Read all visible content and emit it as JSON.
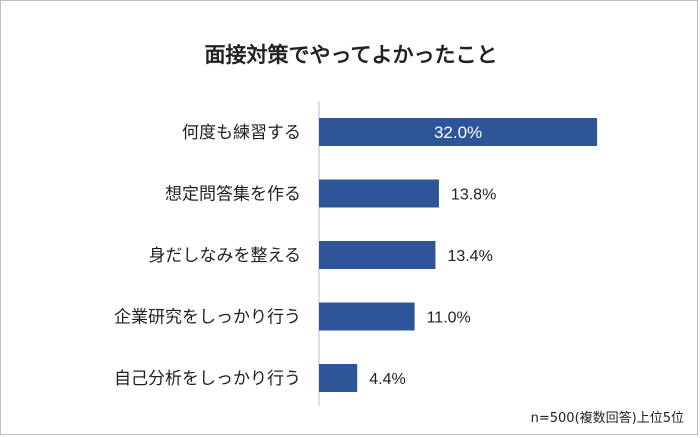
{
  "chart_data": {
    "type": "bar",
    "orientation": "horizontal",
    "title": "面接対策でやってよかったこと",
    "categories": [
      "何度も練習する",
      "想定問答集を作る",
      "身だしなみを整える",
      "企業研究をしっかり行う",
      "自己分析をしっかり行う"
    ],
    "values": [
      32.0,
      13.8,
      13.4,
      11.0,
      4.4
    ],
    "value_labels": [
      "32.0%",
      "13.8%",
      "13.4%",
      "11.0%",
      "4.4%"
    ],
    "xlim": [
      0,
      40
    ],
    "grid": false,
    "bar_color": "#2e5597",
    "note": "n=500(複数回答)上位5位"
  }
}
